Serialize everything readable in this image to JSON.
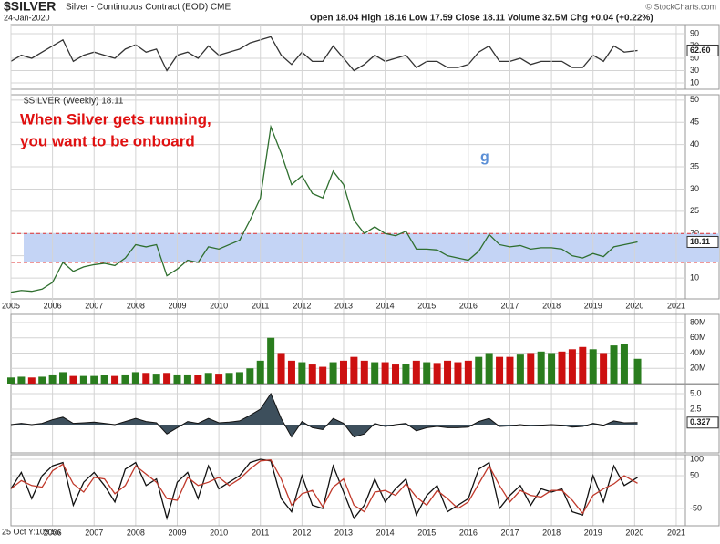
{
  "header": {
    "symbol": "$SILVER",
    "name": "Silver - Continuous Contract (EOD) CME",
    "date": "24-Jan-2020",
    "quote": "Open 18.04  High 18.16  Low 17.59  Close 18.11  Volume 32.5M  Chg +0.04 (+0.22%)",
    "watermark": "© StockCharts.com"
  },
  "chart_data": [
    {
      "type": "line",
      "ylim": [
        -0.4,
        104.8
      ],
      "yticks": [
        10,
        30,
        50,
        70,
        90
      ],
      "xlim": [
        2005,
        2021.22
      ],
      "x": [
        2005,
        2005.25,
        2005.5,
        2005.75,
        2006,
        2006.25,
        2006.5,
        2006.75,
        2007,
        2007.25,
        2007.5,
        2007.75,
        2008,
        2008.25,
        2008.5,
        2008.75,
        2009,
        2009.25,
        2009.5,
        2009.75,
        2010,
        2010.25,
        2010.5,
        2010.75,
        2011,
        2011.25,
        2011.5,
        2011.75,
        2012,
        2012.25,
        2012.5,
        2012.75,
        2013,
        2013.25,
        2013.5,
        2013.75,
        2014,
        2014.25,
        2014.5,
        2014.75,
        2015,
        2015.25,
        2015.5,
        2015.75,
        2016,
        2016.25,
        2016.5,
        2016.75,
        2017,
        2017.25,
        2017.5,
        2017.75,
        2018,
        2018.25,
        2018.5,
        2018.75,
        2019,
        2019.25,
        2019.5,
        2019.75,
        2020.07
      ],
      "series": [
        {
          "color": "#333333",
          "values": [
            45,
            55,
            50,
            60,
            70,
            80,
            45,
            55,
            60,
            55,
            50,
            65,
            72,
            60,
            65,
            30,
            55,
            60,
            50,
            70,
            55,
            60,
            65,
            75,
            80,
            85,
            55,
            40,
            60,
            45,
            45,
            70,
            50,
            30,
            40,
            55,
            45,
            50,
            55,
            35,
            45,
            45,
            35,
            35,
            40,
            60,
            70,
            45,
            45,
            50,
            40,
            45,
            45,
            45,
            35,
            35,
            55,
            45,
            70,
            60,
            62.6
          ]
        }
      ],
      "last": {
        "value": 62.6,
        "label": "62.60"
      }
    },
    {
      "type": "line",
      "title": "$SILVER (Weekly) 18.11",
      "ylim": [
        5.3,
        51.2
      ],
      "yticks": [
        10,
        15,
        20,
        25,
        30,
        35,
        40,
        45,
        50
      ],
      "xlim": [
        2005,
        2021.22
      ],
      "xticks": [
        2005,
        2006,
        2007,
        2008,
        2009,
        2010,
        2011,
        2012,
        2013,
        2014,
        2015,
        2016,
        2017,
        2018,
        2019,
        2020,
        2021
      ],
      "band": [
        13.5,
        20
      ],
      "annotations": [
        "When Silver gets running,",
        "you want to be onboard",
        "g"
      ],
      "x": [
        2005,
        2005.25,
        2005.5,
        2005.75,
        2006,
        2006.25,
        2006.5,
        2006.75,
        2007,
        2007.25,
        2007.5,
        2007.75,
        2008,
        2008.25,
        2008.5,
        2008.75,
        2009,
        2009.25,
        2009.5,
        2009.75,
        2010,
        2010.25,
        2010.5,
        2010.75,
        2011,
        2011.25,
        2011.5,
        2011.75,
        2012,
        2012.25,
        2012.5,
        2012.75,
        2013,
        2013.25,
        2013.5,
        2013.75,
        2014,
        2014.25,
        2014.5,
        2014.75,
        2015,
        2015.25,
        2015.5,
        2015.75,
        2016,
        2016.25,
        2016.5,
        2016.75,
        2017,
        2017.25,
        2017.5,
        2017.75,
        2018,
        2018.25,
        2018.5,
        2018.75,
        2019,
        2019.25,
        2019.5,
        2019.75,
        2020.07
      ],
      "series": [
        {
          "color": "#2f6f2f",
          "values": [
            6.8,
            7.2,
            7.0,
            7.5,
            9.0,
            13.5,
            11.5,
            12.5,
            13.0,
            13.3,
            12.8,
            14.5,
            17.5,
            17.0,
            17.5,
            10.5,
            12.0,
            14.0,
            13.5,
            17.0,
            16.5,
            17.5,
            18.5,
            23.0,
            28.0,
            44.0,
            38.0,
            31.0,
            33.0,
            29.0,
            28.0,
            34.0,
            31.0,
            23.0,
            20.0,
            21.5,
            20.0,
            19.5,
            20.5,
            16.5,
            16.5,
            16.3,
            15.0,
            14.5,
            14.0,
            16.0,
            19.8,
            17.5,
            17.0,
            17.3,
            16.5,
            16.8,
            16.8,
            16.5,
            15.0,
            14.5,
            15.5,
            14.8,
            17.0,
            17.5,
            18.11
          ]
        }
      ],
      "last": 18.11
    },
    {
      "type": "bar",
      "ylim": [
        0,
        90700000
      ],
      "xlim": [
        2005,
        2021.22
      ],
      "colors": [
        "#2a7d1e",
        "#cc1010"
      ],
      "yticks": [
        {
          "value": 20000000,
          "label": "20M"
        },
        {
          "value": 40000000,
          "label": "40M"
        },
        {
          "value": 60000000,
          "label": "60M"
        },
        {
          "value": 80000000,
          "label": "80M"
        }
      ],
      "x": [
        2005,
        2005.25,
        2005.5,
        2005.75,
        2006,
        2006.25,
        2006.5,
        2006.75,
        2007,
        2007.25,
        2007.5,
        2007.75,
        2008,
        2008.25,
        2008.5,
        2008.75,
        2009,
        2009.25,
        2009.5,
        2009.75,
        2010,
        2010.25,
        2010.5,
        2010.75,
        2011,
        2011.25,
        2011.5,
        2011.75,
        2012,
        2012.25,
        2012.5,
        2012.75,
        2013,
        2013.25,
        2013.5,
        2013.75,
        2014,
        2014.25,
        2014.5,
        2014.75,
        2015,
        2015.25,
        2015.5,
        2015.75,
        2016,
        2016.25,
        2016.5,
        2016.75,
        2017,
        2017.25,
        2017.5,
        2017.75,
        2018,
        2018.25,
        2018.5,
        2018.75,
        2019,
        2019.25,
        2019.5,
        2019.75,
        2020.07
      ],
      "values": [
        8000000,
        9000000,
        8000000,
        9000000,
        12000000,
        15000000,
        10000000,
        10000000,
        10000000,
        11000000,
        10000000,
        12000000,
        15000000,
        14000000,
        13000000,
        14000000,
        12000000,
        12000000,
        11000000,
        14000000,
        13000000,
        14000000,
        15000000,
        20000000,
        30000000,
        60000000,
        40000000,
        30000000,
        28000000,
        25000000,
        22000000,
        28000000,
        30000000,
        35000000,
        30000000,
        28000000,
        28000000,
        25000000,
        26000000,
        30000000,
        28000000,
        27000000,
        30000000,
        28000000,
        30000000,
        35000000,
        40000000,
        35000000,
        35000000,
        38000000,
        40000000,
        42000000,
        40000000,
        42000000,
        45000000,
        48000000,
        45000000,
        40000000,
        50000000,
        52000000,
        32500000
      ]
    },
    {
      "type": "area",
      "ylim": [
        -4.56,
        6.47
      ],
      "yticks": [
        {
          "value": 5,
          "label": "5.0"
        },
        2.5
      ],
      "xlim": [
        2005,
        2021.22
      ],
      "color": "#3d4f5c",
      "x": [
        2005,
        2005.25,
        2005.5,
        2005.75,
        2006,
        2006.25,
        2006.5,
        2006.75,
        2007,
        2007.25,
        2007.5,
        2007.75,
        2008,
        2008.25,
        2008.5,
        2008.75,
        2009,
        2009.25,
        2009.5,
        2009.75,
        2010,
        2010.25,
        2010.5,
        2010.75,
        2011,
        2011.25,
        2011.5,
        2011.75,
        2012,
        2012.25,
        2012.5,
        2012.75,
        2013,
        2013.25,
        2013.5,
        2013.75,
        2014,
        2014.25,
        2014.5,
        2014.75,
        2015,
        2015.25,
        2015.5,
        2015.75,
        2016,
        2016.25,
        2016.5,
        2016.75,
        2017,
        2017.25,
        2017.5,
        2017.75,
        2018,
        2018.25,
        2018.5,
        2018.75,
        2019,
        2019.25,
        2019.5,
        2019.75,
        2020.07
      ],
      "series": [
        {
          "color": "#111111",
          "values": [
            0,
            0.2,
            0,
            0.2,
            0.8,
            1.2,
            0.2,
            0.3,
            0.4,
            0.2,
            0,
            0.5,
            1,
            0.5,
            0.3,
            -1.5,
            -0.5,
            0.5,
            0.2,
            1,
            0.3,
            0.4,
            0.6,
            1.5,
            2.5,
            5,
            1,
            -2,
            0.5,
            -0.5,
            -0.8,
            1,
            0.2,
            -2,
            -1.5,
            0.2,
            -0.3,
            0,
            0.2,
            -1,
            -0.5,
            -0.3,
            -0.5,
            -0.5,
            -0.4,
            0.5,
            1,
            -0.3,
            -0.2,
            0,
            -0.2,
            -0.1,
            0,
            -0.1,
            -0.4,
            -0.3,
            0.2,
            -0.1,
            0.6,
            0.3,
            0.327
          ]
        }
      ],
      "last": 0.327
    },
    {
      "type": "line",
      "ylim": [
        -102.8,
        113.9
      ],
      "yticks": [
        -50,
        50,
        100
      ],
      "xlim": [
        2005,
        2021.22
      ],
      "xticks": [
        2006,
        2007,
        2008,
        2009,
        2010,
        2011,
        2012,
        2013,
        2014,
        2015,
        2016,
        2017,
        2018,
        2019,
        2020,
        2021
      ],
      "annotations": [
        "25 Oct Y:109.56"
      ],
      "x": [
        2005,
        2005.25,
        2005.5,
        2005.75,
        2006,
        2006.25,
        2006.5,
        2006.75,
        2007,
        2007.25,
        2007.5,
        2007.75,
        2008,
        2008.25,
        2008.5,
        2008.75,
        2009,
        2009.25,
        2009.5,
        2009.75,
        2010,
        2010.25,
        2010.5,
        2010.75,
        2011,
        2011.25,
        2011.5,
        2011.75,
        2012,
        2012.25,
        2012.5,
        2012.75,
        2013,
        2013.25,
        2013.5,
        2013.75,
        2014,
        2014.25,
        2014.5,
        2014.75,
        2015,
        2015.25,
        2015.5,
        2015.75,
        2016,
        2016.25,
        2016.5,
        2016.75,
        2017,
        2017.25,
        2017.5,
        2017.75,
        2018,
        2018.25,
        2018.5,
        2018.75,
        2019,
        2019.25,
        2019.5,
        2019.75,
        2020.07
      ],
      "series": [
        {
          "color": "#111111",
          "values": [
            10,
            60,
            -20,
            50,
            80,
            90,
            -40,
            30,
            60,
            20,
            -30,
            70,
            90,
            20,
            40,
            -80,
            30,
            60,
            -20,
            80,
            10,
            30,
            50,
            90,
            100,
            95,
            -20,
            -60,
            50,
            -40,
            -50,
            80,
            0,
            -80,
            -40,
            40,
            -30,
            10,
            40,
            -70,
            -10,
            20,
            -60,
            -40,
            -20,
            70,
            90,
            -50,
            -10,
            20,
            -40,
            10,
            0,
            10,
            -60,
            -70,
            50,
            -30,
            80,
            20,
            44.55
          ]
        },
        {
          "color": "#c0392b",
          "values": [
            10,
            35,
            20,
            15,
            65,
            85,
            25,
            0,
            45,
            40,
            -5,
            20,
            80,
            55,
            30,
            -20,
            -25,
            45,
            20,
            30,
            45,
            20,
            40,
            70,
            95,
            98,
            40,
            -40,
            -5,
            5,
            -45,
            15,
            40,
            -40,
            -60,
            0,
            5,
            -10,
            25,
            -15,
            -40,
            5,
            -20,
            -50,
            -30,
            25,
            80,
            20,
            -30,
            5,
            -10,
            -15,
            5,
            5,
            -25,
            -65,
            -10,
            10,
            25,
            50,
            26.78
          ]
        }
      ]
    }
  ]
}
